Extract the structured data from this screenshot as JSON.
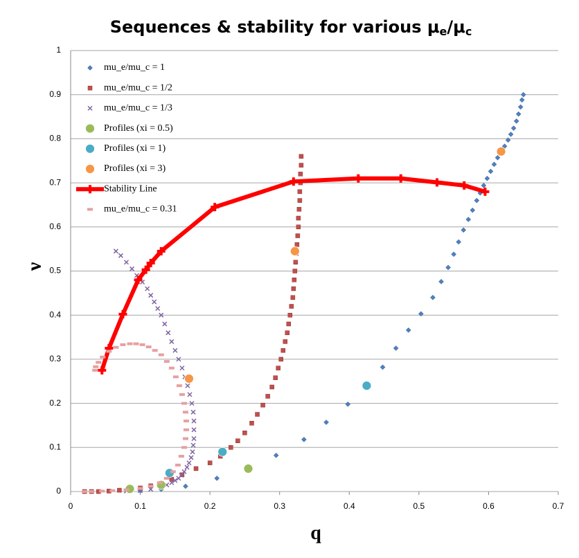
{
  "chart_data": {
    "type": "scatter",
    "title": [
      "Sequences & stability for various μ",
      "e",
      "/μ",
      "c"
    ],
    "x_label": "q",
    "y_label": "ν",
    "xlim": [
      0,
      0.7
    ],
    "ylim": [
      0,
      1
    ],
    "xticks": [
      0,
      0.1,
      0.2,
      0.3,
      0.4,
      0.5,
      0.6,
      0.7
    ],
    "yticks": [
      0,
      0.1,
      0.2,
      0.3,
      0.4,
      0.5,
      0.6,
      0.7,
      0.8,
      0.9,
      1
    ],
    "grid": true,
    "legend": "upper left",
    "series": [
      {
        "name": "mu_e/mu_c = 1",
        "color": "#4f81bd",
        "marker": "diamond",
        "x": [
          0.1,
          0.13,
          0.165,
          0.21,
          0.295,
          0.335,
          0.367,
          0.398,
          0.448,
          0.467,
          0.485,
          0.503,
          0.52,
          0.532,
          0.542,
          0.55,
          0.557,
          0.564,
          0.571,
          0.577,
          0.583,
          0.588,
          0.593,
          0.598,
          0.603,
          0.608,
          0.613,
          0.618,
          0.623,
          0.628,
          0.632,
          0.636,
          0.64,
          0.643,
          0.646,
          0.648,
          0.65
        ],
        "y": [
          0.002,
          0.005,
          0.012,
          0.03,
          0.082,
          0.118,
          0.157,
          0.198,
          0.282,
          0.325,
          0.366,
          0.403,
          0.44,
          0.476,
          0.508,
          0.538,
          0.566,
          0.593,
          0.617,
          0.638,
          0.66,
          0.677,
          0.694,
          0.71,
          0.726,
          0.742,
          0.757,
          0.77,
          0.783,
          0.797,
          0.81,
          0.824,
          0.84,
          0.856,
          0.872,
          0.888,
          0.9
        ]
      },
      {
        "name": "mu_e/mu_c = 1/2",
        "color": "#c0504d",
        "marker": "square",
        "x": [
          0.02,
          0.03,
          0.04,
          0.055,
          0.07,
          0.085,
          0.1,
          0.115,
          0.13,
          0.145,
          0.16,
          0.18,
          0.2,
          0.215,
          0.23,
          0.24,
          0.25,
          0.26,
          0.268,
          0.276,
          0.283,
          0.289,
          0.294,
          0.298,
          0.302,
          0.305,
          0.308,
          0.311,
          0.313,
          0.315,
          0.317,
          0.319,
          0.32,
          0.321,
          0.322,
          0.323,
          0.324,
          0.325,
          0.326,
          0.327,
          0.327,
          0.328,
          0.329,
          0.329,
          0.33,
          0.33,
          0.331,
          0.331
        ],
        "y": [
          0,
          0,
          0,
          0.001,
          0.003,
          0.005,
          0.008,
          0.013,
          0.02,
          0.028,
          0.038,
          0.052,
          0.065,
          0.08,
          0.1,
          0.115,
          0.133,
          0.155,
          0.175,
          0.196,
          0.216,
          0.237,
          0.258,
          0.28,
          0.3,
          0.32,
          0.34,
          0.36,
          0.38,
          0.4,
          0.42,
          0.44,
          0.46,
          0.48,
          0.5,
          0.52,
          0.54,
          0.56,
          0.58,
          0.6,
          0.62,
          0.64,
          0.66,
          0.68,
          0.7,
          0.72,
          0.74,
          0.76
        ]
      },
      {
        "name": "mu_e/mu_c = 1/3",
        "color": "#8064a2",
        "marker": "x",
        "x": [
          0.065,
          0.072,
          0.08,
          0.088,
          0.095,
          0.103,
          0.11,
          0.115,
          0.12,
          0.125,
          0.13,
          0.135,
          0.14,
          0.145,
          0.15,
          0.155,
          0.16,
          0.164,
          0.168,
          0.171,
          0.174,
          0.176,
          0.177,
          0.177,
          0.177,
          0.176,
          0.175,
          0.173,
          0.17,
          0.167,
          0.163,
          0.159,
          0.155,
          0.15,
          0.145,
          0.138,
          0.13,
          0.115,
          0.1,
          0.08
        ],
        "y": [
          0.545,
          0.535,
          0.52,
          0.505,
          0.49,
          0.475,
          0.46,
          0.445,
          0.43,
          0.415,
          0.4,
          0.38,
          0.36,
          0.34,
          0.32,
          0.3,
          0.28,
          0.26,
          0.24,
          0.22,
          0.2,
          0.18,
          0.16,
          0.14,
          0.12,
          0.105,
          0.09,
          0.077,
          0.065,
          0.055,
          0.045,
          0.037,
          0.03,
          0.025,
          0.02,
          0.015,
          0.01,
          0.005,
          0.002,
          0.001
        ]
      },
      {
        "name": "Profiles (xi = 0.5)",
        "color": "#9bbb59",
        "marker": "circle",
        "x": [
          0.085,
          0.13,
          0.255
        ],
        "y": [
          0.006,
          0.015,
          0.052
        ]
      },
      {
        "name": "Profiles (xi = 1)",
        "color": "#4bacc6",
        "marker": "circle",
        "x": [
          0.142,
          0.218,
          0.425
        ],
        "y": [
          0.042,
          0.09,
          0.24
        ]
      },
      {
        "name": "Profiles (xi = 3)",
        "color": "#f79646",
        "marker": "circle",
        "x": [
          0.17,
          0.322,
          0.618
        ],
        "y": [
          0.256,
          0.545,
          0.771
        ]
      },
      {
        "name": "Stability Line",
        "color": "#ff0000",
        "marker": "plus",
        "line": true,
        "x": [
          0.045,
          0.055,
          0.075,
          0.097,
          0.108,
          0.115,
          0.13,
          0.207,
          0.32,
          0.413,
          0.474,
          0.526,
          0.565,
          0.595
        ],
        "y": [
          0.275,
          0.325,
          0.402,
          0.48,
          0.503,
          0.518,
          0.545,
          0.645,
          0.703,
          0.71,
          0.71,
          0.701,
          0.694,
          0.68
        ]
      },
      {
        "name": "mu_e/mu_c = 0.31",
        "color": "#e6a0a0",
        "marker": "dash",
        "x": [
          0.02,
          0.03,
          0.045,
          0.06,
          0.08,
          0.1,
          0.115,
          0.128,
          0.138,
          0.147,
          0.154,
          0.159,
          0.163,
          0.165,
          0.166,
          0.166,
          0.165,
          0.163,
          0.16,
          0.156,
          0.151,
          0.145,
          0.138,
          0.13,
          0.121,
          0.112,
          0.103,
          0.094,
          0.085,
          0.075,
          0.065,
          0.055,
          0.046,
          0.04,
          0.036,
          0.035
        ],
        "y": [
          0,
          0,
          0.001,
          0.002,
          0.004,
          0.007,
          0.012,
          0.02,
          0.03,
          0.045,
          0.06,
          0.08,
          0.1,
          0.12,
          0.14,
          0.16,
          0.18,
          0.2,
          0.22,
          0.24,
          0.26,
          0.28,
          0.295,
          0.31,
          0.32,
          0.328,
          0.333,
          0.335,
          0.335,
          0.333,
          0.327,
          0.318,
          0.305,
          0.293,
          0.283,
          0.275
        ]
      }
    ]
  }
}
